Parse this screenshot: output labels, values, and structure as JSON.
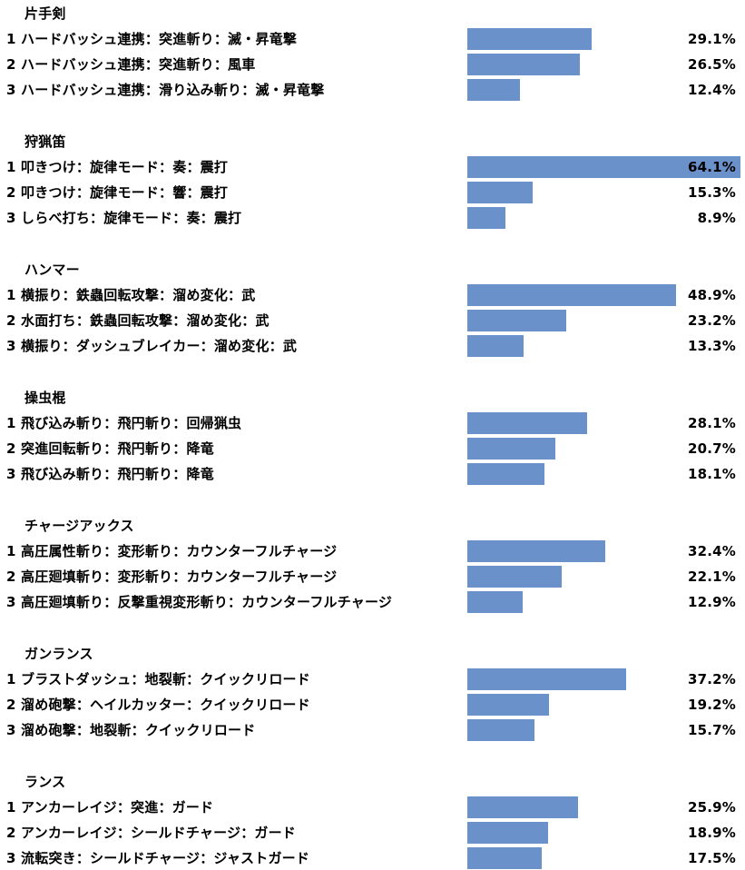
{
  "chart_data": {
    "type": "bar",
    "orientation": "horizontal",
    "xlim": [
      0,
      64.1
    ],
    "grid": false,
    "color": "#6a91c9",
    "groups": [
      {
        "title": "片手剣",
        "rows": [
          {
            "rank": "1",
            "label": "ハードバッシュ連携：突進斬り：滅・昇竜撃",
            "value": 29.1,
            "value_label": "29.1%"
          },
          {
            "rank": "2",
            "label": "ハードバッシュ連携：突進斬り：風車",
            "value": 26.5,
            "value_label": "26.5%"
          },
          {
            "rank": "3",
            "label": "ハードバッシュ連携：滑り込み斬り：滅・昇竜撃",
            "value": 12.4,
            "value_label": "12.4%"
          }
        ]
      },
      {
        "title": "狩猟笛",
        "rows": [
          {
            "rank": "1",
            "label": "叩きつけ：旋律モード：奏：震打",
            "value": 64.1,
            "value_label": "64.1%"
          },
          {
            "rank": "2",
            "label": "叩きつけ：旋律モード：響：震打",
            "value": 15.3,
            "value_label": "15.3%"
          },
          {
            "rank": "3",
            "label": "しらべ打ち：旋律モード：奏：震打",
            "value": 8.9,
            "value_label": "8.9%"
          }
        ]
      },
      {
        "title": "ハンマー",
        "rows": [
          {
            "rank": "1",
            "label": "横振り：鉄蟲回転攻撃：溜め変化：武",
            "value": 48.9,
            "value_label": "48.9%"
          },
          {
            "rank": "2",
            "label": "水面打ち：鉄蟲回転攻撃：溜め変化：武",
            "value": 23.2,
            "value_label": "23.2%"
          },
          {
            "rank": "3",
            "label": "横振り：ダッシュブレイカー：溜め変化：武",
            "value": 13.3,
            "value_label": "13.3%"
          }
        ]
      },
      {
        "title": "操虫棍",
        "rows": [
          {
            "rank": "1",
            "label": "飛び込み斬り：飛円斬り：回帰猟虫",
            "value": 28.1,
            "value_label": "28.1%"
          },
          {
            "rank": "2",
            "label": "突進回転斬り：飛円斬り：降竜",
            "value": 20.7,
            "value_label": "20.7%"
          },
          {
            "rank": "3",
            "label": "飛び込み斬り：飛円斬り：降竜",
            "value": 18.1,
            "value_label": "18.1%"
          }
        ]
      },
      {
        "title": "チャージアックス",
        "rows": [
          {
            "rank": "1",
            "label": "高圧属性斬り：変形斬り：カウンターフルチャージ",
            "value": 32.4,
            "value_label": "32.4%"
          },
          {
            "rank": "2",
            "label": "高圧廻填斬り：変形斬り：カウンターフルチャージ",
            "value": 22.1,
            "value_label": "22.1%"
          },
          {
            "rank": "3",
            "label": "高圧廻填斬り：反撃重視変形斬り：カウンターフルチャージ",
            "value": 12.9,
            "value_label": "12.9%"
          }
        ]
      },
      {
        "title": "ガンランス",
        "rows": [
          {
            "rank": "1",
            "label": "ブラストダッシュ：地裂斬：クイックリロード",
            "value": 37.2,
            "value_label": "37.2%"
          },
          {
            "rank": "2",
            "label": "溜め砲撃：ヘイルカッター：クイックリロード",
            "value": 19.2,
            "value_label": "19.2%"
          },
          {
            "rank": "3",
            "label": "溜め砲撃：地裂斬：クイックリロード",
            "value": 15.7,
            "value_label": "15.7%"
          }
        ]
      },
      {
        "title": "ランス",
        "rows": [
          {
            "rank": "1",
            "label": "アンカーレイジ：突進：ガード",
            "value": 25.9,
            "value_label": "25.9%"
          },
          {
            "rank": "2",
            "label": "アンカーレイジ：シールドチャージ：ガード",
            "value": 18.9,
            "value_label": "18.9%"
          },
          {
            "rank": "3",
            "label": "流転突き：シールドチャージ：ジャストガード",
            "value": 17.5,
            "value_label": "17.5%"
          }
        ]
      }
    ]
  }
}
